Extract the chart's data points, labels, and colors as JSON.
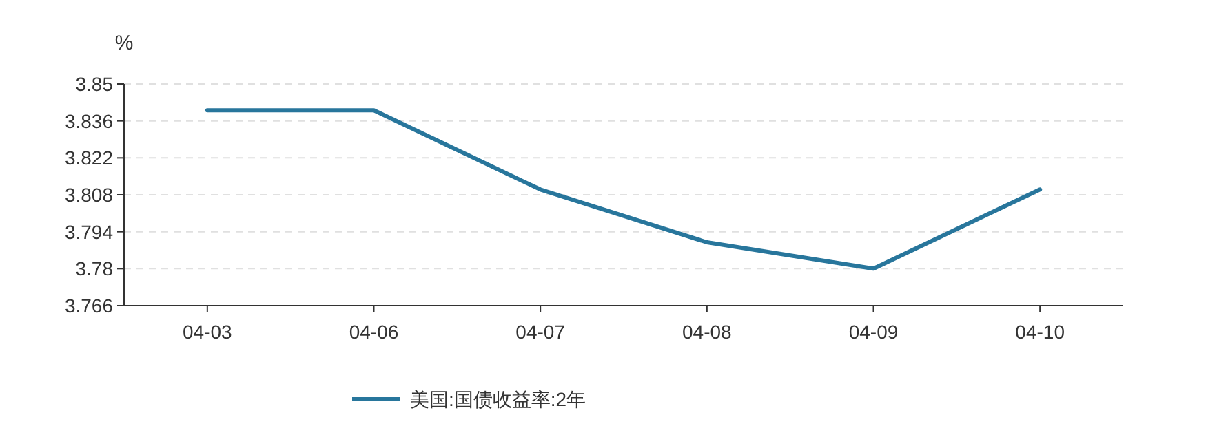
{
  "chart_data": {
    "type": "line",
    "ylabel": "%",
    "categories": [
      "04-03",
      "04-06",
      "04-07",
      "04-08",
      "04-09",
      "04-10"
    ],
    "series": [
      {
        "name": "美国:国债收益率:2年",
        "color": "#28769c",
        "values": [
          3.84,
          3.84,
          3.81,
          3.79,
          3.78,
          3.81
        ]
      }
    ],
    "ylim": [
      3.766,
      3.85
    ],
    "yticks": [
      3.766,
      3.78,
      3.794,
      3.808,
      3.822,
      3.836,
      3.85
    ],
    "grid": "y",
    "legend": "bottom"
  }
}
